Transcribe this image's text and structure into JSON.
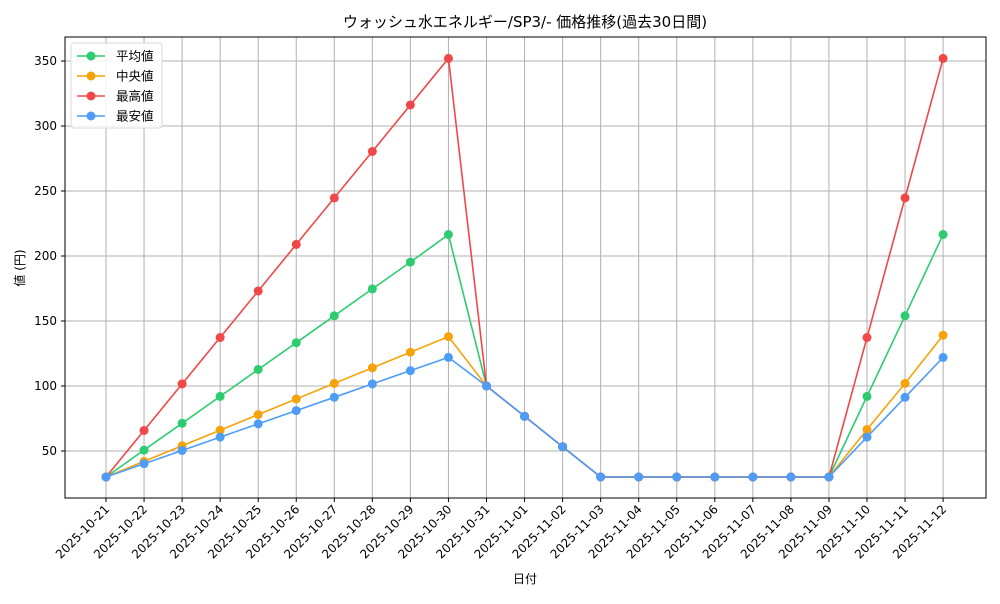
{
  "chart_data": {
    "type": "line",
    "title": "ウォッシュ水エネルギー/SP3/- 価格推移(過去30日間)",
    "xlabel": "日付",
    "ylabel": "値 (円)",
    "ylim": [
      13.9,
      368.5
    ],
    "yticks": [
      50,
      100,
      150,
      200,
      250,
      300,
      350
    ],
    "grid": true,
    "legend_position": "upper left",
    "categories": [
      "2025-10-21",
      "2025-10-22",
      "2025-10-23",
      "2025-10-24",
      "2025-10-25",
      "2025-10-26",
      "2025-10-27",
      "2025-10-28",
      "2025-10-29",
      "2025-10-30",
      "2025-10-31",
      "2025-11-01",
      "2025-11-02",
      "2025-11-03",
      "2025-11-04",
      "2025-11-05",
      "2025-11-06",
      "2025-11-07",
      "2025-11-08",
      "2025-11-09",
      "2025-11-10",
      "2025-11-11",
      "2025-11-12"
    ],
    "series": [
      {
        "name": "平均値",
        "color": "#2ecc71",
        "values": [
          30,
          50.7,
          71.3,
          92,
          112.7,
          133.3,
          154,
          174.7,
          195.3,
          216.5,
          100,
          76.7,
          53.3,
          30,
          30,
          30,
          30,
          30,
          30,
          30,
          92,
          154,
          216.5
        ]
      },
      {
        "name": "中央値",
        "color": "#f5a30a",
        "values": [
          30,
          42,
          54,
          66,
          78,
          90,
          102,
          114,
          126,
          138,
          100,
          76.7,
          53.3,
          30,
          30,
          30,
          30,
          30,
          30,
          30,
          66.5,
          102,
          139
        ]
      },
      {
        "name": "最高値",
        "color": "#f04848",
        "values": [
          30,
          65.8,
          101.6,
          137.3,
          173.1,
          208.9,
          244.7,
          280.4,
          316.2,
          352,
          100,
          76.7,
          53.3,
          30,
          30,
          30,
          30,
          30,
          30,
          30,
          137.3,
          244.7,
          352
        ]
      },
      {
        "name": "最安値",
        "color": "#4f9cf7",
        "values": [
          30,
          40.2,
          50.4,
          60.7,
          70.9,
          81.1,
          91.3,
          101.6,
          111.8,
          122,
          100,
          76.7,
          53.3,
          30,
          30,
          30,
          30,
          30,
          30,
          30,
          60.7,
          91.3,
          122
        ]
      }
    ]
  }
}
